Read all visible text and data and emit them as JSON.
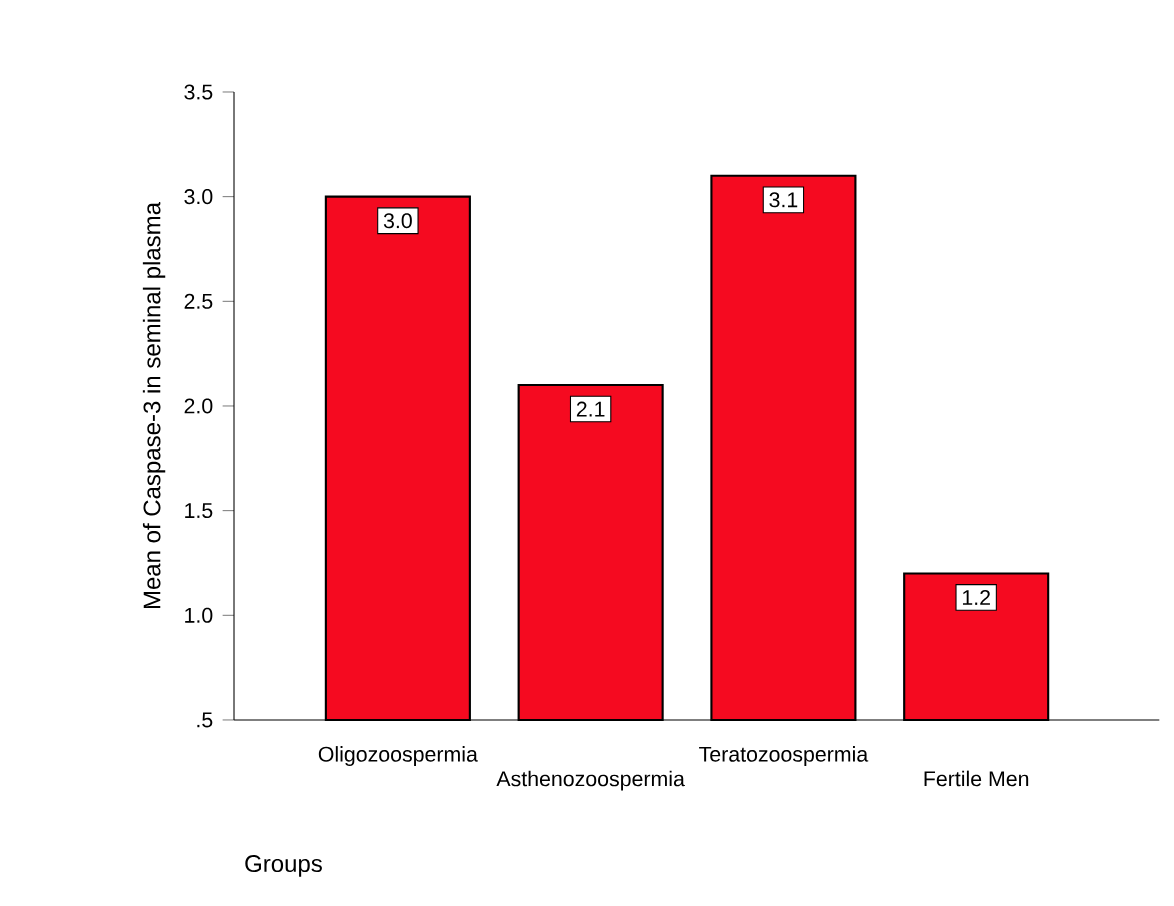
{
  "chart_data": {
    "type": "bar",
    "xlabel": "Groups",
    "ylabel": "Mean of Caspase-3 in seminal plasma",
    "categories": [
      "Oligozoospermia",
      "Asthenozoospermia",
      "Teratozoospermia",
      "Fertile Men"
    ],
    "values": [
      3.0,
      2.1,
      3.1,
      1.2
    ],
    "value_labels": [
      "3.0",
      "2.1",
      "3.1",
      "1.2"
    ],
    "color": "#f50a20",
    "ylim": [
      0.5,
      3.5
    ],
    "yticks": [
      {
        "value": 0.5,
        "label": ".5"
      },
      {
        "value": 1.0,
        "label": "1.0"
      },
      {
        "value": 1.5,
        "label": "1.5"
      },
      {
        "value": 2.0,
        "label": "2.0"
      },
      {
        "value": 2.5,
        "label": "2.5"
      },
      {
        "value": 3.0,
        "label": "3.0"
      },
      {
        "value": 3.5,
        "label": "3.5"
      }
    ]
  }
}
